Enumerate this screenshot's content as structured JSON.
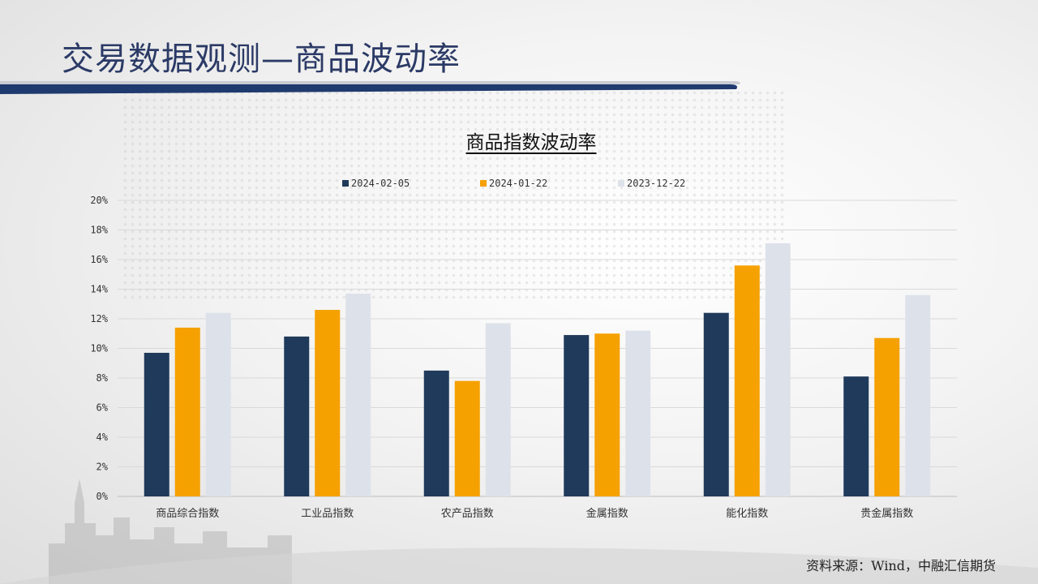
{
  "page": {
    "title": "交易数据观测—商品波动率",
    "source": "资料来源：Wind，中融汇信期货"
  },
  "colors": {
    "title_band": "#1f3a6e",
    "title_text": "#2b3a66"
  },
  "chart_data": {
    "type": "bar",
    "title": "商品指数波动率",
    "categories": [
      "商品综合指数",
      "工业品指数",
      "农产品指数",
      "金属指数",
      "能化指数",
      "贵金属指数"
    ],
    "series": [
      {
        "name": "2024-02-05",
        "color": "#1f3a5a",
        "values": [
          9.7,
          10.8,
          8.5,
          10.9,
          12.4,
          8.1
        ]
      },
      {
        "name": "2024-01-22",
        "color": "#f5a100",
        "values": [
          11.4,
          12.6,
          7.8,
          11.0,
          15.6,
          10.7
        ]
      },
      {
        "name": "2023-12-22",
        "color": "#dde2ea",
        "values": [
          12.4,
          13.7,
          11.7,
          11.2,
          17.1,
          13.6
        ]
      }
    ],
    "y_ticks": [
      "0%",
      "2%",
      "4%",
      "6%",
      "8%",
      "10%",
      "12%",
      "14%",
      "16%",
      "18%",
      "20%"
    ],
    "ylim": [
      0,
      20
    ],
    "grid": true,
    "legend_position": "top"
  }
}
